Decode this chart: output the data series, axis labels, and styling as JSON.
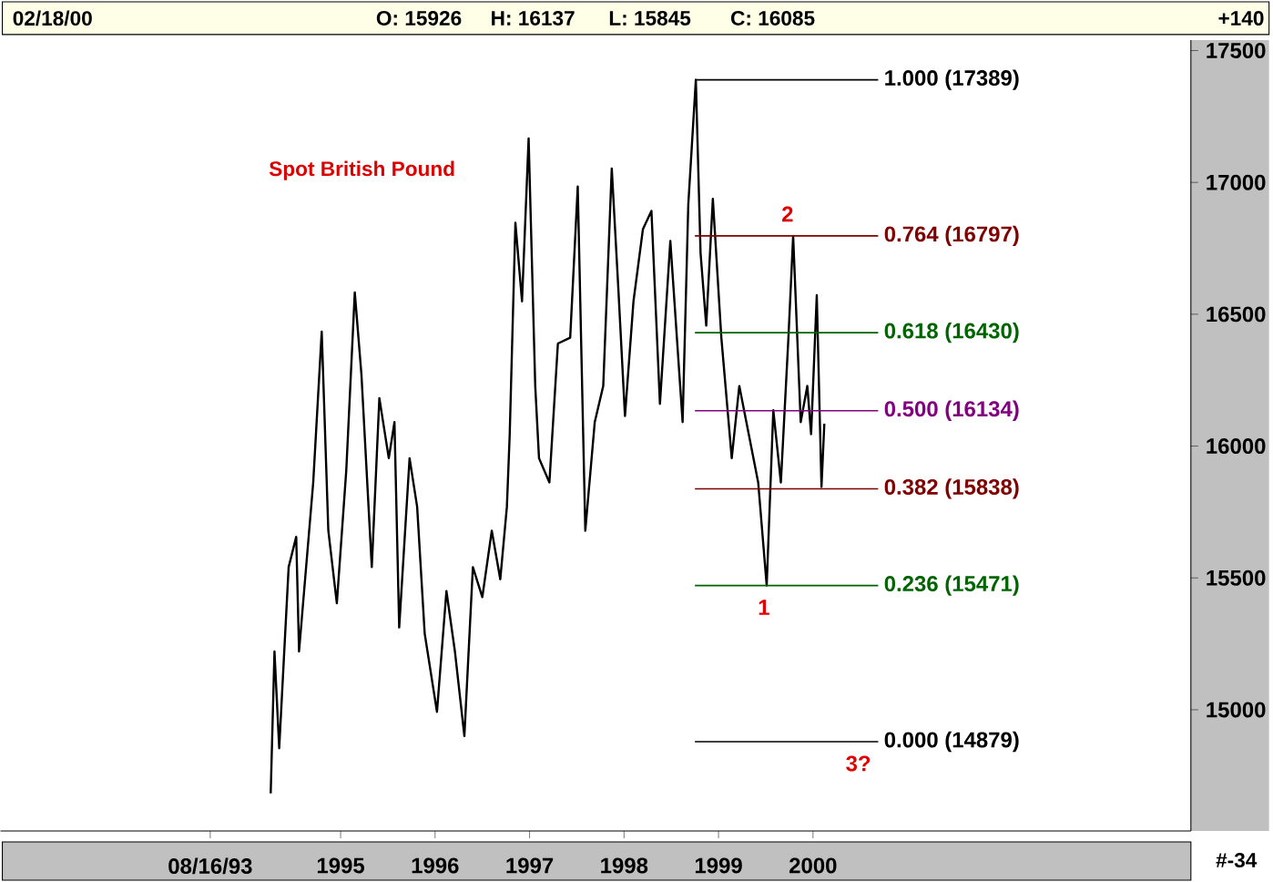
{
  "chart_data": {
    "type": "line",
    "title": "Spot British Pound",
    "x": [
      1994.26,
      1994.3,
      1994.35,
      1994.45,
      1994.53,
      1994.56,
      1994.71,
      1994.8,
      1994.87,
      1994.96,
      1995.06,
      1995.15,
      1995.22,
      1995.33,
      1995.41,
      1995.51,
      1995.57,
      1995.62,
      1995.73,
      1995.81,
      1995.89,
      1996.02,
      1996.12,
      1996.21,
      1996.31,
      1996.4,
      1996.5,
      1996.6,
      1996.69,
      1996.76,
      1996.79,
      1996.85,
      1996.92,
      1996.99,
      1997.06,
      1997.1,
      1997.21,
      1997.3,
      1997.43,
      1997.51,
      1997.59,
      1997.69,
      1997.78,
      1997.87,
      1997.94,
      1998.01,
      1998.1,
      1998.2,
      1998.29,
      1998.38,
      1998.49,
      1998.62,
      1998.68,
      1998.76,
      1998.81,
      1998.87,
      1998.94,
      1999.03,
      1999.14,
      1999.22,
      1999.32,
      1999.42,
      1999.51,
      1999.58,
      1999.66,
      1999.74,
      1999.79,
      1999.87,
      1999.94,
      1999.98,
      2000.04,
      2000.09,
      2000.12
    ],
    "series": [
      {
        "color": "#000000",
        "values": [
          14683,
          15221,
          14854,
          15541,
          15656,
          15221,
          15862,
          16434,
          15679,
          15404,
          15908,
          16583,
          16274,
          15541,
          16182,
          15954,
          16091,
          15312,
          15954,
          15770,
          15289,
          14992,
          15450,
          15221,
          14900,
          15541,
          15427,
          15679,
          15495,
          15770,
          16045,
          16847,
          16549,
          17167,
          16228,
          15954,
          15862,
          16389,
          16411,
          16984,
          15679,
          16091,
          16228,
          17053,
          16595,
          16114,
          16549,
          16823,
          16892,
          16160,
          16778,
          16091,
          16916,
          17389,
          16732,
          16457,
          16938,
          16411,
          15954,
          16228,
          16045,
          15862,
          15471,
          16136,
          15862,
          16411,
          16797,
          16091,
          16228,
          16045,
          16572,
          15845,
          16085
        ]
      }
    ],
    "xlim": [
      1991.4,
      2004.0
    ],
    "ylim": [
      14540,
      17540
    ],
    "xticks": [
      {
        "value": 1993.62,
        "label": "08/16/93"
      },
      1995,
      1996,
      1997,
      1998,
      1999,
      2000
    ],
    "yticks": [
      15000,
      15500,
      16000,
      16500,
      17000,
      17500
    ],
    "grid": false,
    "marker": "none",
    "line_style": "solid",
    "ref_lines": [
      {
        "axis": "y",
        "value": 17389,
        "label": "1.000 (17389)",
        "color": "#000000"
      },
      {
        "axis": "y",
        "value": 16797,
        "label": "0.764 (16797)",
        "color": "#800000"
      },
      {
        "axis": "y",
        "value": 16430,
        "label": "0.618 (16430)",
        "color": "#006400"
      },
      {
        "axis": "y",
        "value": 16134,
        "label": "0.500 (16134)",
        "color": "#800080"
      },
      {
        "axis": "y",
        "value": 15838,
        "label": "0.382 (15838)",
        "color": "#800000"
      },
      {
        "axis": "y",
        "value": 15471,
        "label": "0.236 (15471)",
        "color": "#006400"
      },
      {
        "axis": "y",
        "value": 14879,
        "label": "0.000 (14879)",
        "color": "#000000"
      }
    ],
    "annotations": [
      "02/18/00",
      "O: 15926",
      "H: 16137",
      "L: 15845",
      "C: 16085",
      "+140",
      "#-34",
      {
        "text": "2",
        "x": 1999.73,
        "y": 16797
      },
      {
        "text": "1",
        "x": 1999.48,
        "y": 15471
      },
      {
        "text": "3?",
        "x": 2000.48,
        "y": 14879
      }
    ]
  }
}
